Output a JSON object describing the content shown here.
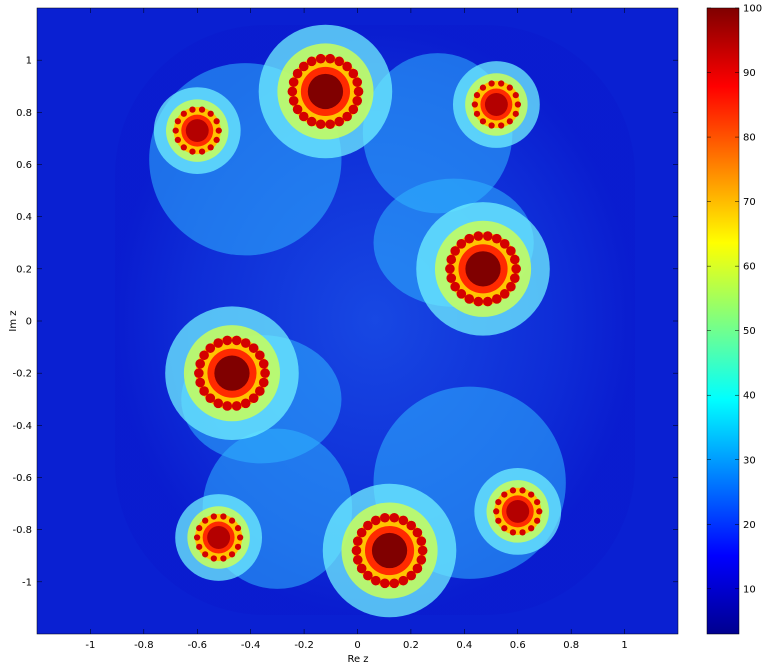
{
  "chart_data": {
    "type": "heatmap",
    "title": "",
    "xlabel": "Re z",
    "ylabel": "Im z",
    "xlim": [
      -1.2,
      1.2
    ],
    "ylim": [
      -1.2,
      1.2
    ],
    "x_ticks": [
      -1,
      -0.8,
      -0.6,
      -0.4,
      -0.2,
      0,
      0.2,
      0.4,
      0.6,
      0.8,
      1
    ],
    "x_tick_labels": [
      "-1",
      "-0.8",
      "-0.6",
      "-0.4",
      "-0.2",
      "0",
      "0.2",
      "0.4",
      "0.6",
      "0.8",
      "1"
    ],
    "y_ticks": [
      1,
      0.8,
      0.6,
      0.4,
      0.2,
      0,
      -0.2,
      -0.4,
      -0.6,
      -0.8,
      -1
    ],
    "y_tick_labels": [
      "1",
      "0.8",
      "0.6",
      "0.4",
      "0.2",
      "0",
      "-0.2",
      "-0.4",
      "-0.6",
      "-0.8",
      "-1"
    ],
    "colormap": "jet",
    "colorbar": {
      "range": [
        3,
        100
      ],
      "ticks": [
        10,
        20,
        30,
        40,
        50,
        60,
        70,
        80,
        90,
        100
      ],
      "tick_labels": [
        "10",
        "20",
        "30",
        "40",
        "50",
        "60",
        "70",
        "80",
        "90",
        "100"
      ]
    },
    "fractal_centers": [
      {
        "re": 0.47,
        "im": 0.2,
        "value": 100
      },
      {
        "re": -0.47,
        "im": -0.2,
        "value": 100
      },
      {
        "re": -0.12,
        "im": 0.88,
        "value": 100
      },
      {
        "re": 0.12,
        "im": -0.88,
        "value": 100
      },
      {
        "re": -0.6,
        "im": 0.73,
        "value": 95
      },
      {
        "re": 0.6,
        "im": -0.73,
        "value": 95
      },
      {
        "re": 0.52,
        "im": 0.83,
        "value": 95
      },
      {
        "re": -0.52,
        "im": -0.83,
        "value": 95
      }
    ],
    "grid": false
  }
}
